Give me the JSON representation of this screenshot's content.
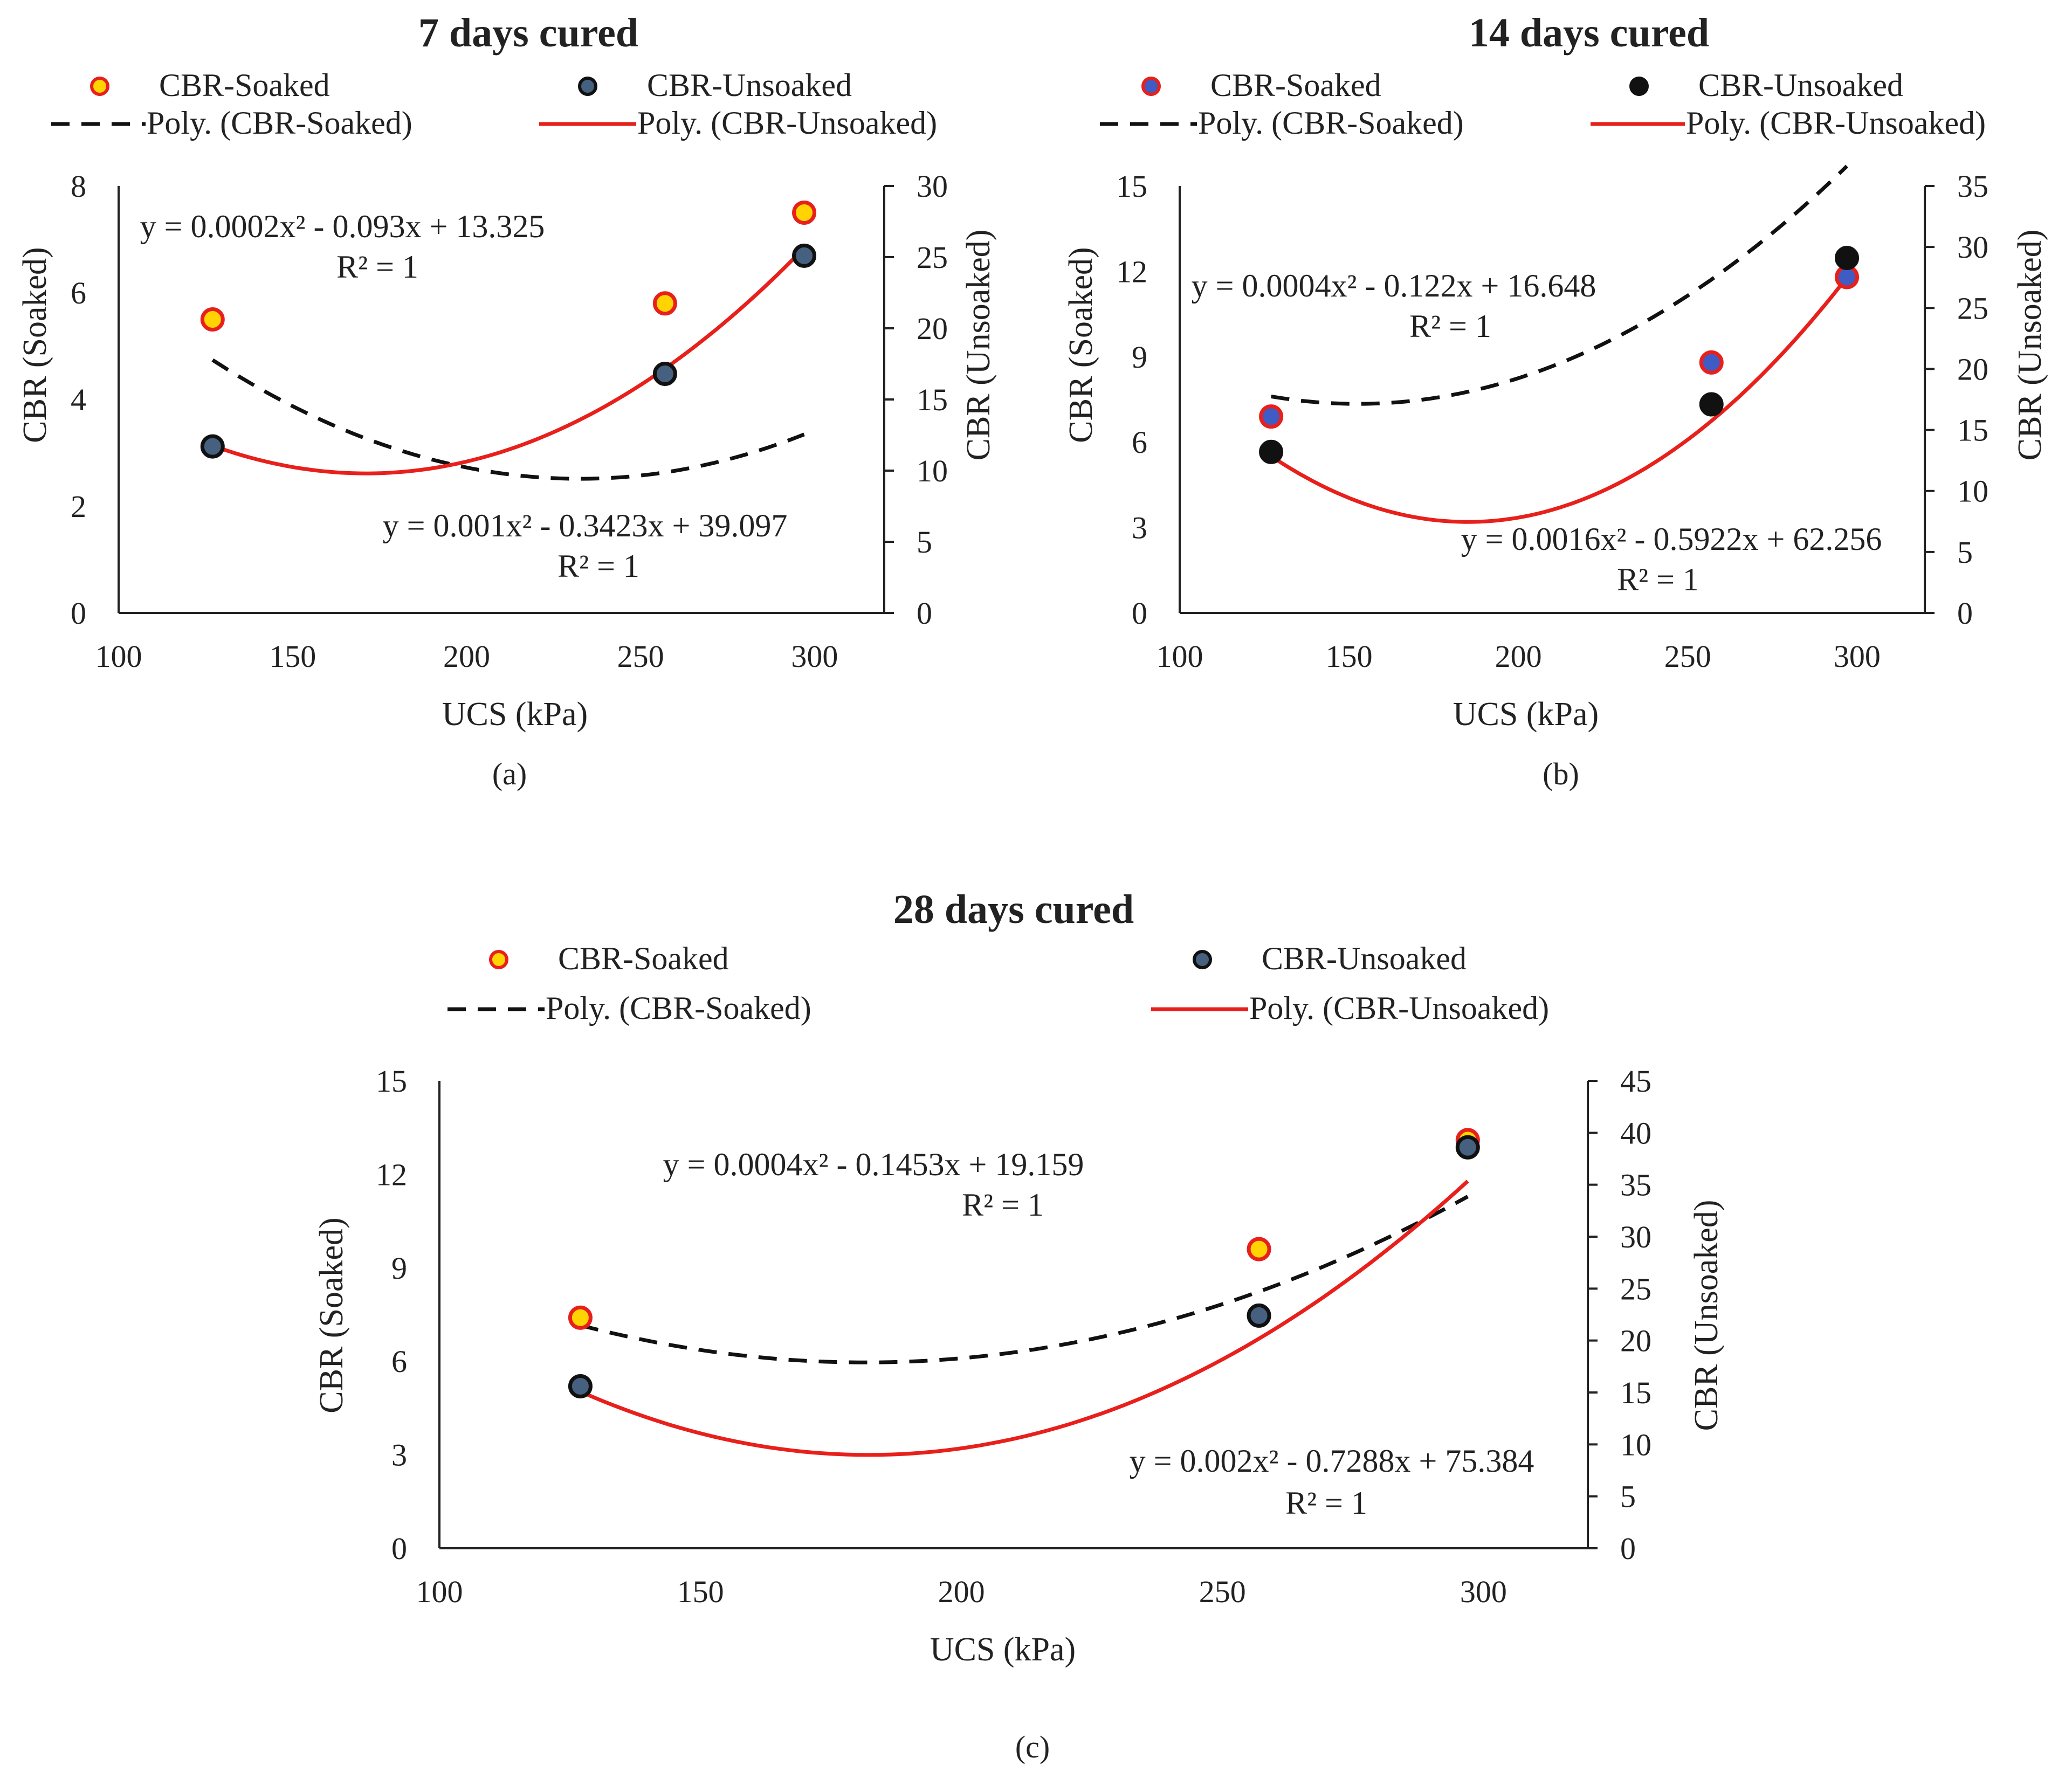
{
  "colors": {
    "soaked_fill": "#ffd400",
    "soaked_edge": "#e8201c",
    "soaked_fill_b": "#3f5bc4",
    "soaked_edge_b": "#e8201c",
    "unsoaked_fill": "#46617f",
    "unsoaked_fill_b": "#111111",
    "unsoaked_edge": "#111111",
    "soaked_trend": "#111111",
    "unsoaked_trend": "#e8201c"
  },
  "chart_data": [
    {
      "type": "scatter",
      "title": "7 days cured",
      "subcaption": "(a)",
      "xlabel": "UCS (kPa)",
      "ylabel_left": "CBR (Soaked)",
      "ylabel_right": "CBR (Unsoaked)",
      "xlim": [
        100,
        320
      ],
      "xticks": [
        100,
        150,
        200,
        250,
        300
      ],
      "ylim_left": [
        0,
        8
      ],
      "yticks_left": [
        0,
        2,
        4,
        6,
        8
      ],
      "ylim_right": [
        0,
        30
      ],
      "yticks_right": [
        0,
        5,
        10,
        15,
        20,
        25,
        30
      ],
      "legend": [
        "CBR-Soaked",
        "CBR-Unsoaked",
        "Poly. (CBR-Soaked)",
        "Poly. (CBR-Unsoaked)"
      ],
      "series": [
        {
          "name": "CBR-Soaked",
          "axis": "left",
          "x": [
            127,
            257,
            297
          ],
          "y": [
            5.5,
            5.8,
            7.5
          ]
        },
        {
          "name": "CBR-Unsoaked",
          "axis": "right",
          "x": [
            127,
            257,
            297
          ],
          "y": [
            11.7,
            16.8,
            25.1
          ]
        }
      ],
      "trendlines": [
        {
          "name": "Poly. (CBR-Soaked)",
          "axis": "left",
          "coef": [
            0.0002,
            -0.093,
            13.325
          ],
          "equation": "y = 0.0002x² - 0.093x + 13.325",
          "r2": "R² = 1"
        },
        {
          "name": "Poly. (CBR-Unsoaked)",
          "axis": "right",
          "coef": [
            0.001,
            -0.3423,
            39.097
          ],
          "equation": "y = 0.001x² - 0.3423x + 39.097",
          "r2": "R² = 1"
        }
      ]
    },
    {
      "type": "scatter",
      "title": "14 days cured",
      "subcaption": "(b)",
      "xlabel": "UCS (kPa)",
      "ylabel_left": "CBR (Soaked)",
      "ylabel_right": "CBR (Unsoaked)",
      "xlim": [
        100,
        320
      ],
      "xticks": [
        100,
        150,
        200,
        250,
        300
      ],
      "ylim_left": [
        0,
        15
      ],
      "yticks_left": [
        0,
        3,
        6,
        9,
        12,
        15
      ],
      "ylim_right": [
        0,
        35
      ],
      "yticks_right": [
        0,
        5,
        10,
        15,
        20,
        25,
        30,
        35
      ],
      "legend": [
        "CBR-Soaked",
        "CBR-Unsoaked",
        "Poly. (CBR-Soaked)",
        "Poly. (CBR-Unsoaked)"
      ],
      "series": [
        {
          "name": "CBR-Soaked",
          "axis": "left",
          "x": [
            127,
            257,
            297
          ],
          "y": [
            6.9,
            8.8,
            11.8
          ]
        },
        {
          "name": "CBR-Unsoaked",
          "axis": "right",
          "x": [
            127,
            257,
            297
          ],
          "y": [
            13.2,
            17.1,
            29.1
          ]
        }
      ],
      "trendlines": [
        {
          "name": "Poly. (CBR-Soaked)",
          "axis": "left",
          "coef": [
            0.0004,
            -0.122,
            16.648
          ],
          "equation": "y = 0.0004x² - 0.122x + 16.648",
          "r2": "R² = 1"
        },
        {
          "name": "Poly. (CBR-Unsoaked)",
          "axis": "right",
          "coef": [
            0.0016,
            -0.5922,
            62.256
          ],
          "equation": "y = 0.0016x² - 0.5922x + 62.256",
          "r2": "R² = 1"
        }
      ]
    },
    {
      "type": "scatter",
      "title": "28 days cured",
      "subcaption": "(c)",
      "xlabel": "UCS (kPa)",
      "ylabel_left": "CBR (Soaked)",
      "ylabel_right": "CBR (Unsoaked)",
      "xlim": [
        100,
        320
      ],
      "xticks": [
        100,
        150,
        200,
        250,
        300
      ],
      "ylim_left": [
        0,
        15
      ],
      "yticks_left": [
        0,
        3,
        6,
        9,
        12,
        15
      ],
      "ylim_right": [
        0,
        45
      ],
      "yticks_right": [
        0,
        5,
        10,
        15,
        20,
        25,
        30,
        35,
        40,
        45
      ],
      "legend": [
        "CBR-Soaked",
        "CBR-Unsoaked",
        "Poly. (CBR-Soaked)",
        "Poly. (CBR-Unsoaked)"
      ],
      "series": [
        {
          "name": "CBR-Soaked",
          "axis": "left",
          "x": [
            127,
            257,
            297
          ],
          "y": [
            7.4,
            9.6,
            13.1
          ]
        },
        {
          "name": "CBR-Unsoaked",
          "axis": "right",
          "x": [
            127,
            257,
            297
          ],
          "y": [
            15.6,
            22.4,
            38.6
          ]
        }
      ],
      "trendlines": [
        {
          "name": "Poly. (CBR-Soaked)",
          "axis": "left",
          "coef": [
            0.0004,
            -0.1453,
            19.159
          ],
          "equation": "y = 0.0004x² - 0.1453x + 19.159",
          "r2": "R² = 1"
        },
        {
          "name": "Poly. (CBR-Unsoaked)",
          "axis": "right",
          "coef": [
            0.002,
            -0.7288,
            75.384
          ],
          "equation": "y = 0.002x² - 0.7288x + 75.384",
          "r2": "R² = 1"
        }
      ]
    }
  ]
}
